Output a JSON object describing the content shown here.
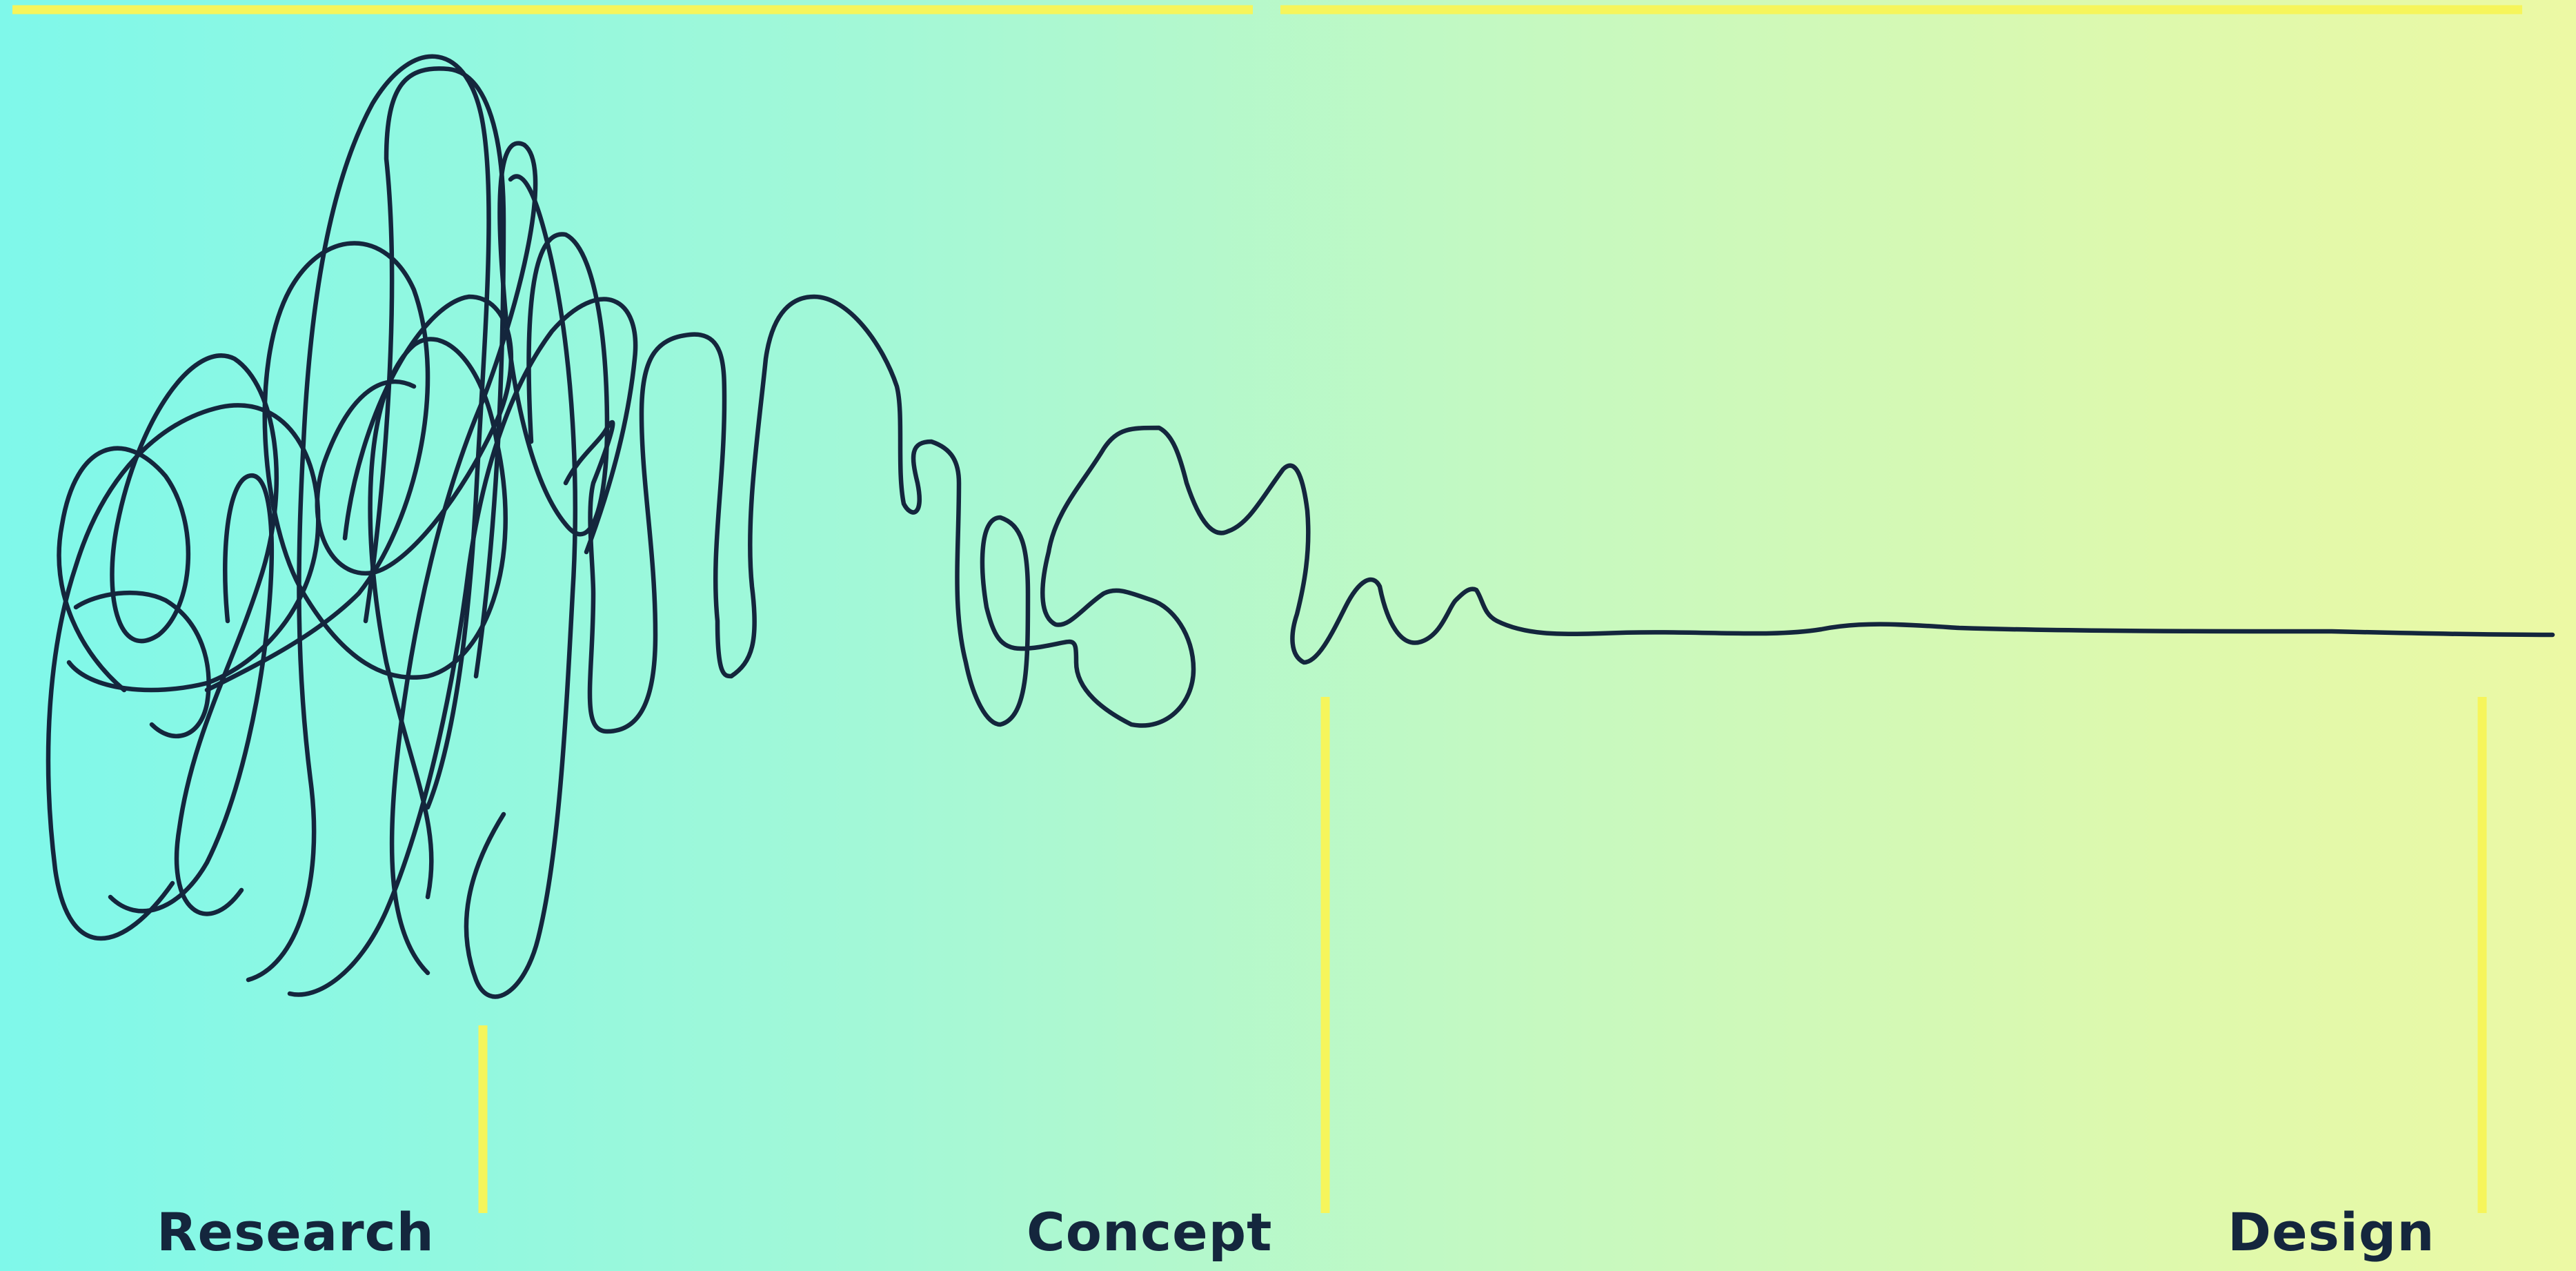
{
  "colors": {
    "background_left": "#7ff8ea",
    "background_right": "#ecf9a4",
    "accent_yellow": "#f6f55b",
    "ink": "#14263d"
  },
  "diagram": {
    "type": "design-process-squiggle",
    "stages": [
      {
        "id": "research",
        "label": "Research"
      },
      {
        "id": "concept",
        "label": "Concept"
      },
      {
        "id": "design",
        "label": "Design"
      }
    ]
  }
}
